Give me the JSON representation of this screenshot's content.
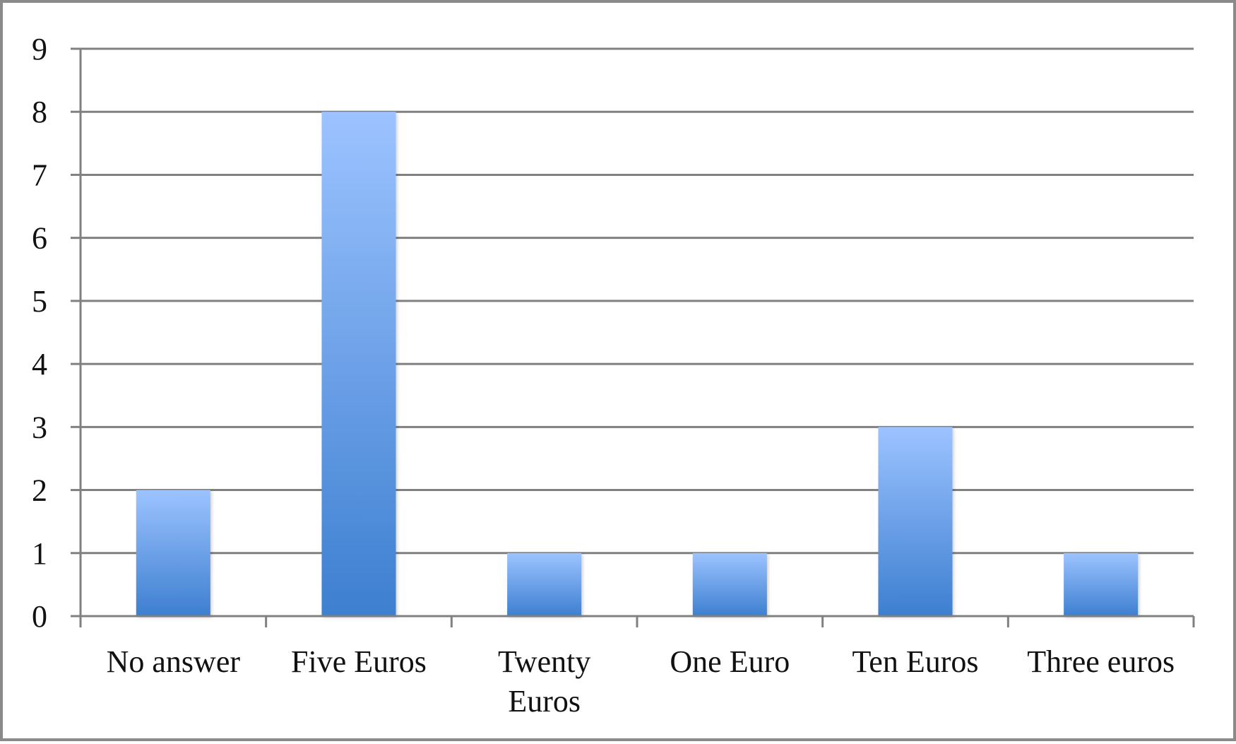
{
  "chart_data": {
    "type": "bar",
    "categories": [
      "No answer",
      "Five Euros",
      "Twenty Euros",
      "One Euro",
      "Ten Euros",
      "Three euros"
    ],
    "category_label_lines": [
      [
        "No answer"
      ],
      [
        "Five Euros"
      ],
      [
        "Twenty",
        "Euros"
      ],
      [
        "One Euro"
      ],
      [
        "Ten Euros"
      ],
      [
        "Three euros"
      ]
    ],
    "values": [
      2,
      8,
      1,
      1,
      3,
      1
    ],
    "y_ticks": [
      "0",
      "1",
      "2",
      "3",
      "4",
      "5",
      "6",
      "7",
      "8",
      "9"
    ],
    "ylim": [
      0,
      9
    ],
    "title": "",
    "xlabel": "",
    "ylabel": "",
    "grid": true,
    "legend": "none",
    "colors": {
      "bar_top": "#9cc3ff",
      "bar_bottom": "#3d7fd0",
      "grid": "#808080",
      "axis": "#808080"
    }
  }
}
